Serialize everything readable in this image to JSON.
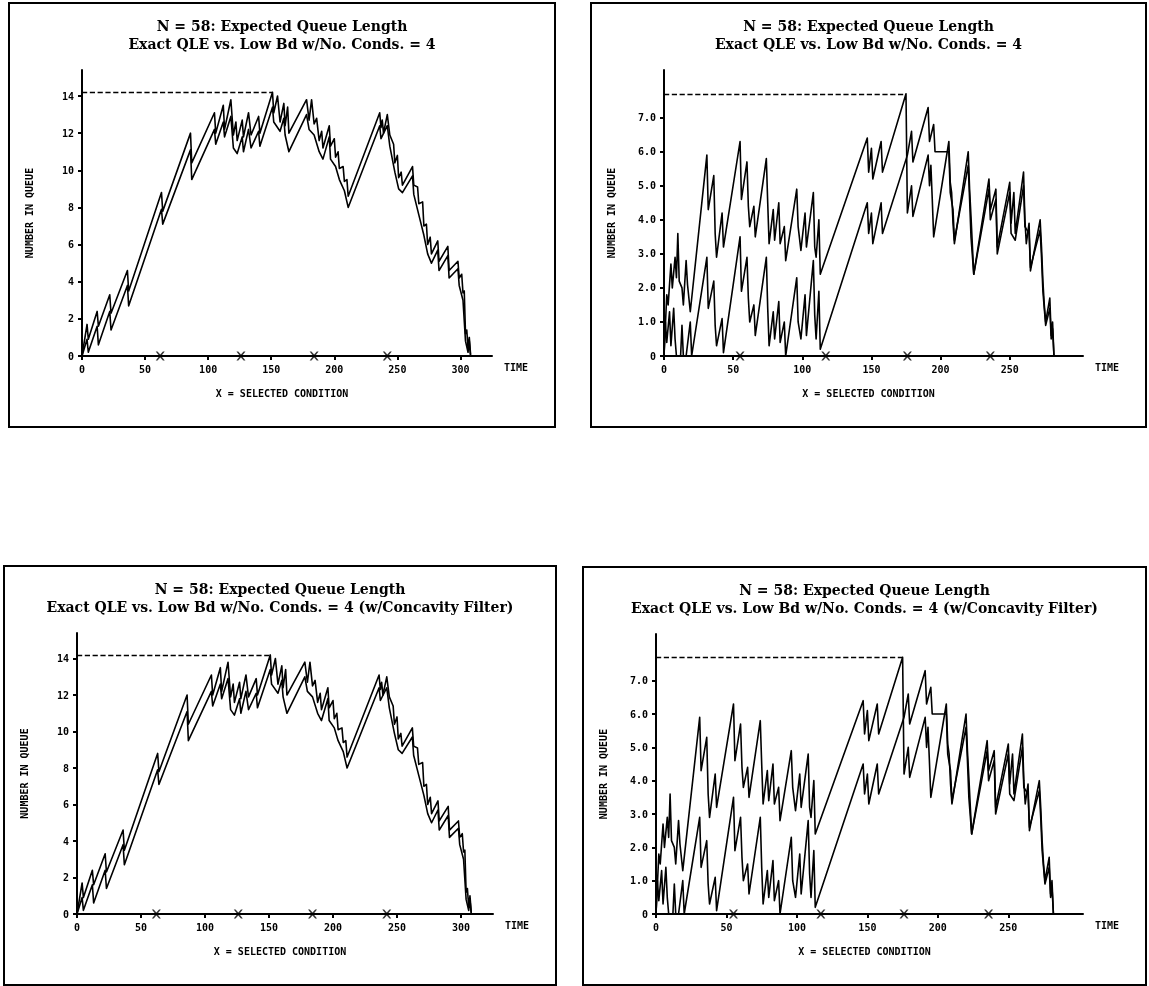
{
  "chart_data": [
    {
      "type": "line",
      "title": "N = 58: Expected Queue Length",
      "subtitle": "Exact QLE vs. Low Bd w/No. Conds. = 4",
      "xlabel": "TIME",
      "ylabel": "NUMBER IN QUEUE",
      "annotations": [
        "X = SELECTED CONDITION"
      ],
      "xlim": [
        0,
        325
      ],
      "ylim": [
        0,
        15.4
      ],
      "xticks": [
        0,
        50,
        100,
        150,
        200,
        250,
        300
      ],
      "yticks": [
        0,
        2,
        4,
        6,
        8,
        10,
        12,
        14
      ],
      "marker": "none",
      "line_style": "solid",
      "ref_lines": [
        {
          "axis": "y",
          "value": 14.2,
          "line_style": "dashed"
        }
      ],
      "series": [
        {
          "type": "line",
          "color": "#000000",
          "x": [
            0,
            4,
            5,
            12,
            13,
            22,
            23,
            36,
            37,
            63,
            64,
            86,
            87,
            105,
            106,
            112,
            113,
            118,
            120,
            122,
            123,
            127,
            128,
            132,
            134,
            140,
            141,
            151,
            152,
            155,
            157,
            160,
            161,
            163,
            164,
            178,
            180,
            182,
            184,
            186,
            188,
            190,
            191,
            196,
            197,
            200,
            201,
            203,
            204,
            207,
            208,
            210,
            211,
            236,
            237,
            238,
            239,
            242,
            244,
            247,
            248,
            250,
            251,
            253,
            254,
            262,
            263,
            266,
            267,
            270,
            271,
            273,
            274,
            276,
            277,
            282,
            283,
            290,
            291,
            298,
            299,
            301,
            302,
            303,
            304,
            305,
            306,
            307,
            308
          ],
          "values": [
            0,
            1.7,
            0.9,
            2.4,
            1.6,
            3.3,
            2.3,
            4.6,
            3.5,
            8.8,
            7.8,
            12.0,
            10.4,
            13.1,
            12.0,
            13.5,
            12.2,
            13.8,
            11.9,
            12.6,
            11.6,
            12.7,
            11.8,
            13.1,
            11.9,
            12.9,
            12.0,
            14.2,
            13.1,
            14.0,
            12.6,
            13.6,
            12.4,
            13.4,
            12.0,
            13.8,
            12.7,
            13.8,
            12.5,
            12.8,
            11.6,
            12.1,
            11.2,
            12.4,
            11.3,
            11.7,
            10.7,
            11.0,
            10.1,
            10.2,
            9.4,
            9.5,
            8.6,
            13.1,
            12.3,
            12.7,
            12.0,
            13.0,
            11.9,
            11.4,
            10.4,
            10.8,
            9.6,
            9.9,
            9.2,
            10.2,
            9.2,
            9.1,
            8.2,
            8.3,
            7.0,
            7.1,
            6.0,
            6.4,
            5.5,
            6.2,
            5.1,
            5.9,
            4.6,
            5.1,
            4.2,
            4.4,
            3.4,
            3.5,
            1.2,
            1.4,
            0.4,
            1.0,
            0.1
          ]
        },
        {
          "type": "line",
          "color": "#000000",
          "x": [
            0,
            4,
            5,
            12,
            13,
            22,
            23,
            36,
            37,
            63,
            64,
            86,
            87,
            105,
            106,
            112,
            113,
            118,
            120,
            123,
            127,
            128,
            132,
            134,
            140,
            141,
            151,
            152,
            157,
            160,
            161,
            164,
            178,
            180,
            184,
            188,
            191,
            196,
            197,
            201,
            204,
            208,
            211,
            236,
            237,
            242,
            244,
            248,
            251,
            254,
            262,
            263,
            267,
            271,
            274,
            277,
            282,
            283,
            290,
            291,
            298,
            299,
            302,
            304,
            306,
            307,
            308
          ],
          "values": [
            0,
            0.9,
            0.2,
            1.6,
            0.6,
            2.4,
            1.4,
            3.8,
            2.7,
            7.9,
            7.1,
            11.1,
            9.5,
            12.2,
            11.4,
            12.6,
            11.8,
            12.9,
            11.2,
            10.9,
            11.8,
            11.0,
            12.2,
            11.2,
            12.1,
            11.3,
            13.4,
            12.6,
            12.1,
            12.8,
            11.9,
            11.0,
            13.0,
            12.2,
            11.9,
            11.0,
            10.6,
            11.8,
            10.6,
            10.2,
            9.5,
            8.9,
            8.0,
            12.4,
            11.7,
            12.4,
            11.3,
            9.9,
            9.0,
            8.8,
            9.7,
            8.7,
            7.6,
            6.5,
            5.5,
            5.0,
            5.7,
            4.6,
            5.4,
            4.2,
            4.7,
            3.8,
            3.0,
            0.8,
            0.2,
            0.8,
            0
          ]
        },
        {
          "type": "scatter",
          "marker": "cross",
          "color": "#000000",
          "x": [
            62,
            126,
            184,
            242
          ],
          "values": [
            0,
            0,
            0,
            0
          ]
        }
      ]
    },
    {
      "type": "line",
      "title": "N = 58: Expected Queue Length",
      "subtitle": "Exact QLE vs. Low Bd w/No. Conds. = 4",
      "xlabel": "TIME",
      "ylabel": "NUMBER IN QUEUE",
      "annotations": [
        "X = SELECTED CONDITION"
      ],
      "xlim": [
        0,
        303
      ],
      "ylim": [
        0,
        8.4
      ],
      "xticks": [
        0,
        50,
        100,
        150,
        200,
        250
      ],
      "yticks": [
        0,
        {
          "value": 1,
          "label": "1.0"
        },
        {
          "value": 2,
          "label": "2.0"
        },
        {
          "value": 3,
          "label": "3.0"
        },
        {
          "value": 4,
          "label": "4.0"
        },
        {
          "value": 5,
          "label": "5.0"
        },
        {
          "value": 6,
          "label": "6.0"
        },
        {
          "value": 7,
          "label": "7.0"
        }
      ],
      "marker": "none",
      "line_style": "solid",
      "ref_lines": [
        {
          "axis": "y",
          "value": 7.7,
          "line_style": "dashed"
        }
      ],
      "series": [
        {
          "type": "line",
          "color": "#000000",
          "x": [
            0,
            2,
            3,
            5,
            6,
            8,
            9,
            10,
            11,
            13,
            14,
            16,
            17,
            19,
            31,
            32,
            36,
            37,
            38,
            42,
            43,
            55,
            56,
            60,
            61,
            62,
            65,
            66,
            74,
            75,
            76,
            79,
            80,
            83,
            84,
            87,
            88,
            96,
            97,
            99,
            102,
            103,
            108,
            109,
            110,
            112,
            113,
            147,
            148,
            150,
            151,
            157,
            158,
            175,
            176,
            179,
            180,
            191,
            192,
            193,
            194,
            195,
            206,
            207,
            208,
            209,
            210,
            220,
            221,
            222,
            224,
            235,
            236,
            240,
            241,
            250,
            251,
            253,
            254,
            260,
            261,
            262,
            264,
            265,
            272,
            273,
            274,
            275,
            276,
            279,
            280,
            281,
            282
          ],
          "values": [
            0,
            1.8,
            1.5,
            2.7,
            2.0,
            2.9,
            2.3,
            3.6,
            2.2,
            2.0,
            1.5,
            2.8,
            2.1,
            1.3,
            5.9,
            4.3,
            5.3,
            3.6,
            2.9,
            4.2,
            3.2,
            6.3,
            4.6,
            5.7,
            4.4,
            3.8,
            4.4,
            3.5,
            5.8,
            4.5,
            3.3,
            4.3,
            3.4,
            4.5,
            3.3,
            3.8,
            2.8,
            4.9,
            3.8,
            3.1,
            4.2,
            3.2,
            4.8,
            3.2,
            2.9,
            4.0,
            2.4,
            6.4,
            5.4,
            6.1,
            5.2,
            6.3,
            5.4,
            7.7,
            4.2,
            5.0,
            4.1,
            5.9,
            5.0,
            5.6,
            4.6,
            3.5,
            6.3,
            5.1,
            4.8,
            3.9,
            3.3,
            6.0,
            4.9,
            4.1,
            2.4,
            5.2,
            4.3,
            4.9,
            3.2,
            5.1,
            3.9,
            4.8,
            3.6,
            5.4,
            4.0,
            3.3,
            3.9,
            2.5,
            4.0,
            3.2,
            2.2,
            1.5,
            1.0,
            1.7,
            0.6,
            1.0,
            0
          ]
        },
        {
          "type": "line",
          "color": "#000000",
          "x": [
            0,
            1,
            2,
            4,
            5,
            7,
            8,
            9,
            12,
            13,
            14,
            16,
            19,
            20,
            31,
            32,
            36,
            37,
            38,
            42,
            43,
            55,
            56,
            60,
            61,
            62,
            65,
            66,
            74,
            75,
            76,
            79,
            80,
            83,
            84,
            87,
            88,
            96,
            97,
            99,
            102,
            103,
            108,
            109,
            110,
            112,
            113,
            147,
            148,
            150,
            151,
            157,
            158,
            176,
            179,
            180,
            191,
            192,
            195,
            196,
            206,
            207,
            209,
            210,
            220,
            221,
            222,
            224,
            235,
            236,
            240,
            241,
            250,
            251,
            254,
            260,
            261,
            264,
            265,
            272,
            273,
            274,
            276,
            279,
            280,
            281,
            282
          ],
          "values": [
            0,
            1.0,
            0.4,
            1.3,
            0.3,
            1.4,
            0.5,
            0,
            0,
            0.9,
            0,
            0,
            1.0,
            0,
            2.9,
            1.4,
            2.2,
            0.9,
            0.3,
            1.1,
            0.1,
            3.5,
            1.9,
            2.9,
            1.7,
            1.0,
            1.5,
            0.6,
            2.9,
            1.4,
            0.3,
            1.3,
            0.5,
            1.6,
            0.4,
            1.0,
            0,
            2.3,
            1.0,
            0.5,
            1.8,
            0.6,
            2.8,
            1.2,
            0.5,
            1.9,
            0.2,
            4.5,
            3.6,
            4.2,
            3.3,
            4.5,
            3.6,
            5.9,
            6.6,
            5.7,
            7.3,
            6.3,
            6.8,
            6.0,
            6.0,
            4.8,
            4.3,
            3.4,
            5.6,
            4.6,
            3.5,
            2.4,
            4.9,
            4.0,
            4.6,
            3.0,
            4.8,
            3.6,
            3.4,
            5.0,
            3.8,
            3.6,
            2.6,
            3.7,
            2.9,
            1.9,
            0.9,
            1.4,
            0.5,
            0.8,
            0
          ]
        },
        {
          "type": "scatter",
          "marker": "cross",
          "color": "#000000",
          "x": [
            55,
            117,
            176,
            236
          ],
          "values": [
            0,
            0,
            0,
            0
          ]
        }
      ]
    },
    {
      "type": "line",
      "title": "N = 58: Expected Queue Length",
      "subtitle": "Exact QLE vs. Low Bd w/No. Conds. = 4 (w/Concavity Filter)",
      "xlabel": "TIME",
      "ylabel": "NUMBER IN QUEUE",
      "annotations": [
        "X = SELECTED CONDITION"
      ],
      "xlim": [
        0,
        325
      ],
      "ylim": [
        0,
        15.4
      ],
      "xticks": [
        0,
        50,
        100,
        150,
        200,
        250,
        300
      ],
      "yticks": [
        0,
        2,
        4,
        6,
        8,
        10,
        12,
        14
      ],
      "marker": "none",
      "line_style": "solid",
      "ref_lines": [
        {
          "axis": "y",
          "value": 14.2,
          "line_style": "dashed"
        }
      ],
      "series": [
        {
          "type": "line",
          "color": "#000000",
          "x": [
            0,
            4,
            5,
            12,
            13,
            22,
            23,
            36,
            37,
            63,
            64,
            86,
            87,
            105,
            106,
            112,
            113,
            118,
            120,
            122,
            123,
            127,
            128,
            132,
            134,
            140,
            141,
            151,
            152,
            155,
            157,
            160,
            161,
            163,
            164,
            178,
            180,
            182,
            184,
            186,
            188,
            190,
            191,
            196,
            197,
            200,
            201,
            203,
            204,
            207,
            208,
            210,
            211,
            236,
            237,
            238,
            239,
            242,
            244,
            247,
            248,
            250,
            251,
            253,
            254,
            262,
            263,
            266,
            267,
            270,
            271,
            273,
            274,
            276,
            277,
            282,
            283,
            290,
            291,
            298,
            299,
            301,
            302,
            303,
            304,
            305,
            306,
            307,
            308
          ],
          "values": [
            0,
            1.7,
            0.9,
            2.4,
            1.6,
            3.3,
            2.3,
            4.6,
            3.5,
            8.8,
            7.8,
            12.0,
            10.4,
            13.1,
            12.0,
            13.5,
            12.2,
            13.8,
            11.9,
            12.6,
            11.6,
            12.7,
            11.8,
            13.1,
            11.9,
            12.9,
            12.0,
            14.2,
            13.1,
            14.0,
            12.6,
            13.6,
            12.4,
            13.4,
            12.0,
            13.8,
            12.7,
            13.8,
            12.5,
            12.8,
            11.6,
            12.1,
            11.2,
            12.4,
            11.3,
            11.7,
            10.7,
            11.0,
            10.1,
            10.2,
            9.4,
            9.5,
            8.6,
            13.1,
            12.3,
            12.7,
            12.0,
            13.0,
            11.9,
            11.4,
            10.4,
            10.8,
            9.6,
            9.9,
            9.2,
            10.2,
            9.2,
            9.1,
            8.2,
            8.3,
            7.0,
            7.1,
            6.0,
            6.4,
            5.5,
            6.2,
            5.1,
            5.9,
            4.6,
            5.1,
            4.2,
            4.4,
            3.4,
            3.5,
            1.2,
            1.4,
            0.4,
            1.0,
            0.1
          ]
        },
        {
          "type": "line",
          "color": "#000000",
          "x": [
            0,
            4,
            5,
            12,
            13,
            22,
            23,
            36,
            37,
            63,
            64,
            86,
            87,
            105,
            106,
            112,
            113,
            118,
            120,
            123,
            127,
            128,
            132,
            134,
            140,
            141,
            151,
            152,
            157,
            160,
            161,
            164,
            178,
            180,
            184,
            188,
            191,
            196,
            197,
            201,
            204,
            208,
            211,
            236,
            237,
            242,
            244,
            248,
            251,
            254,
            262,
            263,
            267,
            271,
            274,
            277,
            282,
            283,
            290,
            291,
            298,
            299,
            302,
            304,
            306,
            307,
            308
          ],
          "values": [
            0,
            0.9,
            0.2,
            1.6,
            0.6,
            2.4,
            1.4,
            3.8,
            2.7,
            7.9,
            7.1,
            11.1,
            9.5,
            12.2,
            11.4,
            12.6,
            11.8,
            12.9,
            11.2,
            10.9,
            11.8,
            11.0,
            12.2,
            11.2,
            12.1,
            11.3,
            13.4,
            12.6,
            12.1,
            12.8,
            11.9,
            11.0,
            13.0,
            12.2,
            11.9,
            11.0,
            10.6,
            11.8,
            10.6,
            10.2,
            9.5,
            8.9,
            8.0,
            12.4,
            11.7,
            12.4,
            11.3,
            9.9,
            9.0,
            8.8,
            9.7,
            8.7,
            7.6,
            6.5,
            5.5,
            5.0,
            5.7,
            4.6,
            5.4,
            4.2,
            4.7,
            3.8,
            3.0,
            0.8,
            0.2,
            0.8,
            0
          ]
        },
        {
          "type": "scatter",
          "marker": "cross",
          "color": "#000000",
          "x": [
            62,
            126,
            184,
            242
          ],
          "values": [
            0,
            0,
            0,
            0
          ]
        }
      ]
    },
    {
      "type": "line",
      "title": "N = 58: Expected Queue Length",
      "subtitle": "Exact QLE vs. Low Bd w/No. Conds. = 4 (w/Concavity Filter)",
      "xlabel": "TIME",
      "ylabel": "NUMBER IN QUEUE",
      "annotations": [
        "X = SELECTED CONDITION"
      ],
      "xlim": [
        0,
        303
      ],
      "ylim": [
        0,
        8.4
      ],
      "xticks": [
        0,
        50,
        100,
        150,
        200,
        250
      ],
      "yticks": [
        0,
        {
          "value": 1,
          "label": "1.0"
        },
        {
          "value": 2,
          "label": "2.0"
        },
        {
          "value": 3,
          "label": "3.0"
        },
        {
          "value": 4,
          "label": "4.0"
        },
        {
          "value": 5,
          "label": "5.0"
        },
        {
          "value": 6,
          "label": "6.0"
        },
        {
          "value": 7,
          "label": "7.0"
        }
      ],
      "marker": "none",
      "line_style": "solid",
      "ref_lines": [
        {
          "axis": "y",
          "value": 7.7,
          "line_style": "dashed"
        }
      ],
      "series": [
        {
          "type": "line",
          "color": "#000000",
          "x": [
            0,
            2,
            3,
            5,
            6,
            8,
            9,
            10,
            11,
            13,
            14,
            16,
            17,
            19,
            31,
            32,
            36,
            37,
            38,
            42,
            43,
            55,
            56,
            60,
            61,
            62,
            65,
            66,
            74,
            75,
            76,
            79,
            80,
            83,
            84,
            87,
            88,
            96,
            97,
            99,
            102,
            103,
            108,
            109,
            110,
            112,
            113,
            147,
            148,
            150,
            151,
            157,
            158,
            175,
            176,
            179,
            180,
            191,
            192,
            193,
            194,
            195,
            206,
            207,
            208,
            209,
            210,
            220,
            221,
            222,
            224,
            235,
            236,
            240,
            241,
            250,
            251,
            253,
            254,
            260,
            261,
            262,
            264,
            265,
            272,
            273,
            274,
            275,
            276,
            279,
            280,
            281,
            282
          ],
          "values": [
            0,
            1.8,
            1.5,
            2.7,
            2.0,
            2.9,
            2.3,
            3.6,
            2.2,
            2.0,
            1.5,
            2.8,
            2.1,
            1.3,
            5.9,
            4.3,
            5.3,
            3.6,
            2.9,
            4.2,
            3.2,
            6.3,
            4.6,
            5.7,
            4.4,
            3.8,
            4.4,
            3.5,
            5.8,
            4.5,
            3.3,
            4.3,
            3.4,
            4.5,
            3.3,
            3.8,
            2.8,
            4.9,
            3.8,
            3.1,
            4.2,
            3.2,
            4.8,
            3.2,
            2.9,
            4.0,
            2.4,
            6.4,
            5.4,
            6.1,
            5.2,
            6.3,
            5.4,
            7.7,
            4.2,
            5.0,
            4.1,
            5.9,
            5.0,
            5.6,
            4.6,
            3.5,
            6.3,
            5.1,
            4.8,
            3.9,
            3.3,
            6.0,
            4.9,
            4.1,
            2.4,
            5.2,
            4.3,
            4.9,
            3.2,
            5.1,
            3.9,
            4.8,
            3.6,
            5.4,
            4.0,
            3.3,
            3.9,
            2.5,
            4.0,
            3.2,
            2.2,
            1.5,
            1.0,
            1.7,
            0.6,
            1.0,
            0
          ]
        },
        {
          "type": "line",
          "color": "#000000",
          "x": [
            0,
            1,
            2,
            4,
            5,
            7,
            8,
            9,
            12,
            13,
            14,
            16,
            19,
            20,
            31,
            32,
            36,
            37,
            38,
            42,
            43,
            55,
            56,
            60,
            61,
            62,
            65,
            66,
            74,
            75,
            76,
            79,
            80,
            83,
            84,
            87,
            88,
            96,
            97,
            99,
            102,
            103,
            108,
            109,
            110,
            112,
            113,
            147,
            148,
            150,
            151,
            157,
            158,
            176,
            179,
            180,
            191,
            192,
            195,
            196,
            206,
            207,
            209,
            210,
            220,
            221,
            222,
            224,
            235,
            236,
            240,
            241,
            250,
            251,
            254,
            260,
            261,
            264,
            265,
            272,
            273,
            274,
            276,
            279,
            280,
            281,
            282
          ],
          "values": [
            0,
            1.0,
            0.4,
            1.3,
            0.3,
            1.4,
            0.5,
            0,
            0,
            0.9,
            0,
            0,
            1.0,
            0,
            2.9,
            1.4,
            2.2,
            0.9,
            0.3,
            1.1,
            0.1,
            3.5,
            1.9,
            2.9,
            1.7,
            1.0,
            1.5,
            0.6,
            2.9,
            1.4,
            0.3,
            1.3,
            0.5,
            1.6,
            0.4,
            1.0,
            0,
            2.3,
            1.0,
            0.5,
            1.8,
            0.6,
            2.8,
            1.2,
            0.5,
            1.9,
            0.2,
            4.5,
            3.6,
            4.2,
            3.3,
            4.5,
            3.6,
            5.9,
            6.6,
            5.7,
            7.3,
            6.3,
            6.8,
            6.0,
            6.0,
            4.8,
            4.3,
            3.4,
            5.6,
            4.6,
            3.5,
            2.4,
            4.9,
            4.0,
            4.6,
            3.0,
            4.8,
            3.6,
            3.4,
            5.0,
            3.8,
            3.6,
            2.6,
            3.7,
            2.9,
            1.9,
            0.9,
            1.4,
            0.5,
            0.8,
            0
          ]
        },
        {
          "type": "scatter",
          "marker": "cross",
          "color": "#000000",
          "x": [
            55,
            117,
            176,
            236
          ],
          "values": [
            0,
            0,
            0,
            0
          ]
        }
      ]
    }
  ]
}
